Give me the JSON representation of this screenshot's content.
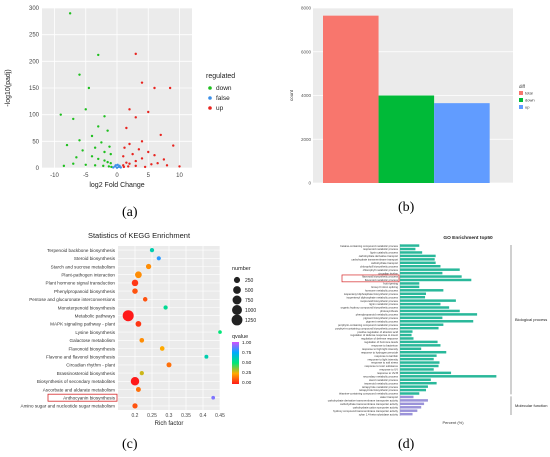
{
  "figure": {
    "captions": [
      "(a)",
      "(b)",
      "(c)",
      "(d)"
    ]
  },
  "chart_data": [
    {
      "type": "scatter",
      "panel": "a",
      "title": "",
      "xlabel": "log2 Fold Change",
      "ylabel": "-log10(padj)",
      "xlim": [
        -12,
        12
      ],
      "ylim": [
        0,
        300
      ],
      "xticks": [
        -10,
        -5,
        0,
        5,
        10
      ],
      "yticks": [
        0,
        50,
        100,
        150,
        200,
        250,
        300
      ],
      "grid": true,
      "legend": {
        "title": "regulated",
        "placement": "right",
        "entries": [
          {
            "name": "down",
            "color": "#1fbf1f"
          },
          {
            "name": "false",
            "color": "#3a8fe8"
          },
          {
            "name": "up",
            "color": "#e8241f"
          }
        ]
      },
      "series": [
        {
          "name": "down",
          "color": "#1fbf1f",
          "points": [
            [
              -7.5,
              290
            ],
            [
              -3,
              212
            ],
            [
              -6,
              175
            ],
            [
              -4.5,
              150
            ],
            [
              -9,
              100
            ],
            [
              -5,
              110
            ],
            [
              -2,
              97
            ],
            [
              -7,
              92
            ],
            [
              -3,
              78
            ],
            [
              -1.5,
              70
            ],
            [
              -4,
              60
            ],
            [
              -6,
              52
            ],
            [
              -2.5,
              48
            ],
            [
              -8,
              43
            ],
            [
              -1.2,
              40
            ],
            [
              -3.5,
              38
            ],
            [
              -5.5,
              33
            ],
            [
              -2,
              30
            ],
            [
              -1,
              26
            ],
            [
              -4,
              22
            ],
            [
              -6.5,
              20
            ],
            [
              -3,
              17
            ],
            [
              -2,
              14
            ],
            [
              -1.5,
              11
            ],
            [
              -1,
              9
            ],
            [
              -7,
              8
            ],
            [
              -5,
              6
            ],
            [
              -3.5,
              5
            ],
            [
              -2.2,
              4
            ],
            [
              -1.3,
              3
            ],
            [
              -0.9,
              2
            ],
            [
              -8.5,
              4
            ]
          ]
        },
        {
          "name": "false",
          "color": "#3a8fe8",
          "points": [
            [
              -0.6,
              1
            ],
            [
              -0.3,
              3
            ],
            [
              0,
              0.5
            ],
            [
              0.3,
              2
            ],
            [
              0.6,
              1
            ],
            [
              -0.2,
              5
            ],
            [
              0.1,
              6
            ],
            [
              0.4,
              4
            ]
          ]
        },
        {
          "name": "up",
          "color": "#e8241f",
          "points": [
            [
              3,
              214
            ],
            [
              4,
              160
            ],
            [
              6,
              150
            ],
            [
              8.5,
              150
            ],
            [
              2,
              110
            ],
            [
              5,
              105
            ],
            [
              3,
              95
            ],
            [
              1.5,
              75
            ],
            [
              7,
              62
            ],
            [
              4,
              50
            ],
            [
              2,
              45
            ],
            [
              9,
              42
            ],
            [
              1.2,
              38
            ],
            [
              3.5,
              35
            ],
            [
              5,
              30
            ],
            [
              2.5,
              26
            ],
            [
              6,
              24
            ],
            [
              1,
              22
            ],
            [
              4,
              18
            ],
            [
              7.5,
              16
            ],
            [
              3,
              13
            ],
            [
              1.5,
              10
            ],
            [
              2,
              8
            ],
            [
              5.5,
              7
            ],
            [
              1,
              5
            ],
            [
              3,
              4
            ],
            [
              1.8,
              3
            ],
            [
              1.1,
              2
            ],
            [
              4.5,
              2
            ],
            [
              8,
              5
            ],
            [
              10,
              3
            ],
            [
              6.5,
              9
            ]
          ]
        }
      ]
    },
    {
      "type": "bar",
      "panel": "b",
      "title": "",
      "xlabel": "",
      "ylabel": "count",
      "ylim": [
        0,
        8000
      ],
      "yticks": [
        0,
        2000,
        4000,
        6000,
        8000
      ],
      "categories": [
        "total",
        "down",
        "up"
      ],
      "values": [
        7650,
        4000,
        3650
      ],
      "colors": [
        "#f8766d",
        "#00ba38",
        "#619cff"
      ],
      "legend": {
        "title": "diff",
        "placement": "right",
        "entries": [
          {
            "name": "total",
            "color": "#f8766d"
          },
          {
            "name": "down",
            "color": "#00ba38"
          },
          {
            "name": "up",
            "color": "#619cff"
          }
        ]
      }
    },
    {
      "type": "scatter",
      "panel": "c",
      "title": "Statistics of KEGG Enrichment",
      "xlabel": "Rich factor",
      "ylabel": "",
      "xlim": [
        0.15,
        0.45
      ],
      "xticks": [
        0.2,
        0.25,
        0.3,
        0.35,
        0.4,
        0.45
      ],
      "categories": [
        "Terpenoid backbone biosynthesis",
        "Steroid biosynthesis",
        "Starch and sucrose metabolism",
        "Plant-pathogen interaction",
        "Plant hormone signal transduction",
        "Phenylpropanoid biosynthesis",
        "Pentose and glucuronate interconversions",
        "Monoterpenoid biosynthesis",
        "Metabolic pathways",
        "MAPK signaling pathway - plant",
        "Lysine biosynthesis",
        "Galactose metabolism",
        "Flavonoid biosynthesis",
        "Flavone and flavonol biosynthesis",
        "Circadian rhythm - plant",
        "Brassinosteroid biosynthesis",
        "Biosynthesis of secondary metabolites",
        "Ascorbate and aldarate metabolism",
        "Anthocyanin biosynthesis",
        "Amino sugar and nucleotide sugar metabolism"
      ],
      "x": [
        0.25,
        0.27,
        0.24,
        0.21,
        0.2,
        0.2,
        0.23,
        0.29,
        0.18,
        0.21,
        0.45,
        0.22,
        0.28,
        0.41,
        0.3,
        0.22,
        0.2,
        0.21,
        0.43,
        0.2
      ],
      "number": [
        60,
        55,
        150,
        330,
        300,
        170,
        80,
        60,
        1300,
        200,
        25,
        90,
        90,
        40,
        120,
        60,
        650,
        110,
        30,
        140
      ],
      "qvalue": [
        0.6,
        0.8,
        0.2,
        0.2,
        0.05,
        0.1,
        0.1,
        0.55,
        0.0,
        0.05,
        0.5,
        0.2,
        0.25,
        0.6,
        0.15,
        0.3,
        0.0,
        0.15,
        0.9,
        0.1
      ],
      "highlighted": "Anthocyanin biosynthesis",
      "legend": {
        "size_title": "number",
        "size_entries": [
          "250",
          "500",
          "750",
          "1000",
          "1250"
        ],
        "color_title": "qvalue",
        "color_ticks": [
          "1.00",
          "0.75",
          "0.50",
          "0.25",
          "0.00"
        ],
        "placement": "right"
      }
    },
    {
      "type": "bar",
      "panel": "d",
      "title": "GO Enrichment top50",
      "xlabel": "Percent (%)",
      "ylabel": "",
      "orientation": "horizontal",
      "highlighted": [
        "flavonoid biosynthetic process",
        "flavonoid metabolic process"
      ],
      "groups": [
        {
          "name": "Biological process",
          "color": "#29b89a",
          "count": 44
        },
        {
          "name": "Molecular function",
          "color": "#9b93d9",
          "count": 6
        }
      ],
      "categories": [
        "betaine-containing compound metabolic process",
        "isoprenoid metabolic process",
        "lignin catabolic process",
        "carbohydrate derivative transport",
        "carbohydrate transmembrane transport",
        "carbohydrate transport",
        "chlorophyll biosynthetic process",
        "chlorophyll metabolic process",
        "circadian rhythm",
        "flavonoid biosynthetic process",
        "flavonoid metabolic process",
        "fruit ripening",
        "Group II intron splicing",
        "hormone metabolic process",
        "isopentenyl diphosphate biosynthetic process",
        "isopentenyl diphosphate metabolic process",
        "isoprenoid biosynthetic process",
        "lignin metabolic process",
        "organic hydroxy compound biosynthetic process",
        "photosynthesis",
        "phenylpropanoid metabolic process",
        "pigment biosynthetic process",
        "pigment metabolic process",
        "porphyrin-containing compound metabolic process",
        "porphyrin-containing compound biosynthetic process",
        "positive regulation of abscisic acid",
        "regulation of defense response to insect",
        "regulation of defense response",
        "regulation of hormone levels",
        "response to bacterium",
        "response to high light intensity",
        "response to hydrogen peroxide",
        "response to karrikin",
        "response to light intensity",
        "response to salt stress",
        "response to toxic substance",
        "response to UV",
        "response to UV-B",
        "secondary metabolic process",
        "sterol metabolic process",
        "terpenoid metabolic process",
        "tetrapyrrole metabolic process",
        "tetrapyrrole biosynthetic process",
        "thiamine-containing compound metabolic process",
        "water transport",
        "carbohydrate derivative transmembrane transporter activity",
        "carbohydrate transmembrane transporter activity",
        "carbohydrate:cation symporter activity",
        "hydroxy compound transmembrane transporter activity",
        "xylan 1,4-beta-xylosidase activity"
      ],
      "values": [
        20,
        16,
        23,
        37,
        36,
        37,
        42,
        62,
        44,
        64,
        74,
        20,
        20,
        45,
        27,
        26,
        58,
        42,
        51,
        62,
        80,
        44,
        76,
        45,
        40,
        13,
        12,
        14,
        39,
        42,
        22,
        48,
        38,
        35,
        41,
        40,
        35,
        53,
        100,
        32,
        38,
        29,
        27,
        20,
        14,
        29,
        25,
        22,
        18,
        13
      ]
    }
  ]
}
